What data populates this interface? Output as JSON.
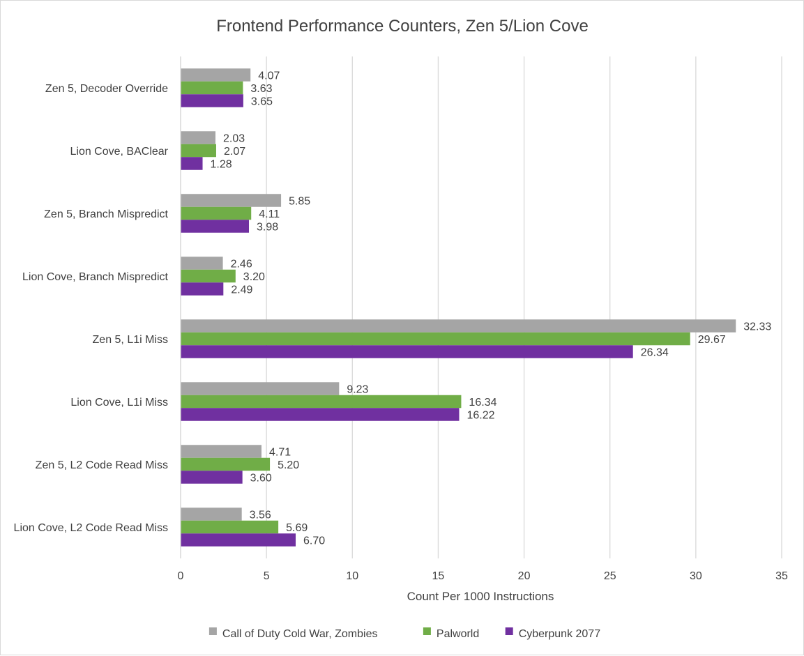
{
  "chart_data": {
    "type": "bar",
    "orientation": "horizontal",
    "title": "Frontend Performance Counters, Zen 5/Lion Cove",
    "xlabel": "Count Per 1000 Instructions",
    "ylabel": "",
    "xlim": [
      0,
      35
    ],
    "xticks": [
      "0",
      "5",
      "10",
      "15",
      "20",
      "25",
      "30",
      "35"
    ],
    "grid": "vertical",
    "legend_position": "bottom",
    "categories": [
      "Zen 5, Decoder Override",
      "Lion Cove, BAClear",
      "Zen 5, Branch Mispredict",
      "Lion Cove, Branch Mispredict",
      "Zen 5, L1i Miss",
      "Lion Cove, L1i Miss",
      "Zen 5, L2 Code Read Miss",
      "Lion Cove, L2 Code Read Miss"
    ],
    "series": [
      {
        "name": "Call of Duty Cold War, Zombies",
        "color": "#a5a5a5",
        "values": [
          4.07,
          2.03,
          5.85,
          2.46,
          32.33,
          9.23,
          4.71,
          3.56
        ],
        "labels": [
          "4.07",
          "2.03",
          "5.85",
          "2.46",
          "32.33",
          "9.23",
          "4.71",
          "3.56"
        ]
      },
      {
        "name": "Palworld",
        "color": "#70ad47",
        "values": [
          3.63,
          2.07,
          4.11,
          3.2,
          29.67,
          16.34,
          5.2,
          5.69
        ],
        "labels": [
          "3.63",
          "2.07",
          "4.11",
          "3.20",
          "29.67",
          "16.34",
          "5.20",
          "5.69"
        ]
      },
      {
        "name": "Cyberpunk 2077",
        "color": "#7030a0",
        "values": [
          3.65,
          1.28,
          3.98,
          2.49,
          26.34,
          16.22,
          3.6,
          6.7
        ],
        "labels": [
          "3.65",
          "1.28",
          "3.98",
          "2.49",
          "26.34",
          "16.22",
          "3.60",
          "6.70"
        ]
      }
    ]
  }
}
